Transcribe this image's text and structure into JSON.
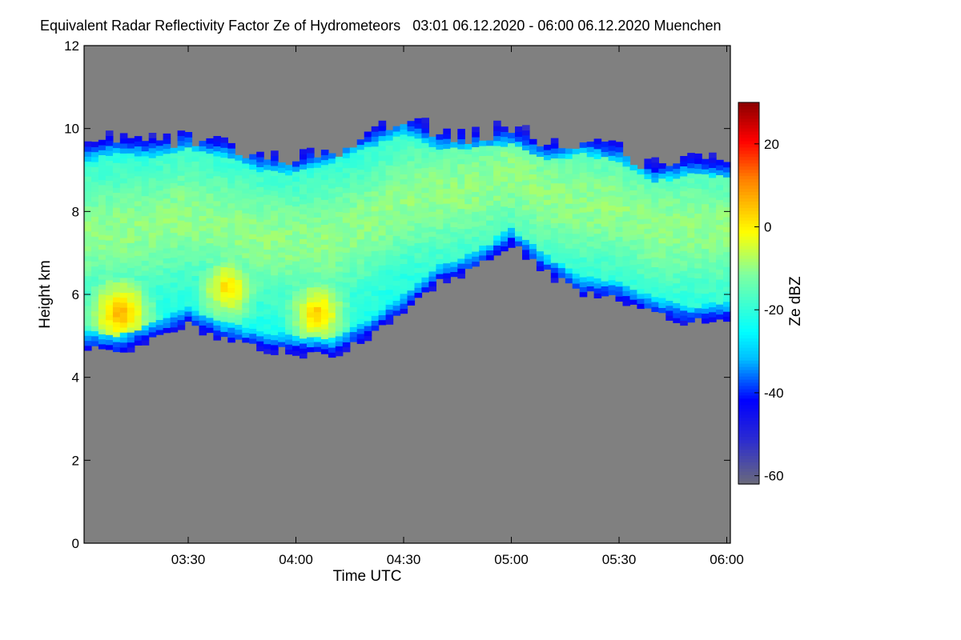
{
  "chart_data": {
    "type": "heatmap",
    "title": "Equivalent Radar Reflectivity Factor Ze of Hydrometeors",
    "subtitle": "03:01 06.12.2020 - 06:00 06.12.2020 Muenchen",
    "xlabel": "Time UTC",
    "ylabel": "Height km",
    "xlim": [
      "03:01",
      "06:01"
    ],
    "ylim": [
      0,
      12
    ],
    "x_ticks": [
      "03:30",
      "04:00",
      "04:30",
      "05:00",
      "05:30",
      "06:00"
    ],
    "y_ticks": [
      "0",
      "2",
      "4",
      "6",
      "8",
      "10",
      "12"
    ],
    "colorbar": {
      "label": "Ze dBZ",
      "range": [
        -62,
        30
      ],
      "ticks": [
        "20",
        "0",
        "-20",
        "-40",
        "-60"
      ]
    },
    "cloud_layer_km": [
      {
        "time": "03:02",
        "base": 4.7,
        "top": 9.5
      },
      {
        "time": "03:10",
        "base": 4.6,
        "top": 9.7
      },
      {
        "time": "03:20",
        "base": 4.9,
        "top": 9.6
      },
      {
        "time": "03:30",
        "base": 5.3,
        "top": 9.8
      },
      {
        "time": "03:40",
        "base": 4.9,
        "top": 9.6
      },
      {
        "time": "03:50",
        "base": 4.7,
        "top": 9.3
      },
      {
        "time": "04:00",
        "base": 4.6,
        "top": 9.2
      },
      {
        "time": "04:10",
        "base": 4.5,
        "top": 9.5
      },
      {
        "time": "04:20",
        "base": 5.0,
        "top": 9.8
      },
      {
        "time": "04:30",
        "base": 5.6,
        "top": 10.2
      },
      {
        "time": "04:40",
        "base": 6.3,
        "top": 9.8
      },
      {
        "time": "04:50",
        "base": 6.6,
        "top": 9.8
      },
      {
        "time": "05:00",
        "base": 7.2,
        "top": 9.9
      },
      {
        "time": "05:10",
        "base": 6.5,
        "top": 9.5
      },
      {
        "time": "05:20",
        "base": 6.0,
        "top": 9.7
      },
      {
        "time": "05:30",
        "base": 5.9,
        "top": 9.5
      },
      {
        "time": "05:40",
        "base": 5.5,
        "top": 9.0
      },
      {
        "time": "05:50",
        "base": 5.3,
        "top": 9.2
      },
      {
        "time": "06:00",
        "base": 5.4,
        "top": 9.1
      }
    ],
    "core_maxima_dBZ": [
      {
        "time": "03:10",
        "height_km": 5.5,
        "ze": 8
      },
      {
        "time": "03:40",
        "height_km": 6.1,
        "ze": 4
      },
      {
        "time": "04:05",
        "height_km": 5.5,
        "ze": 5
      }
    ]
  }
}
